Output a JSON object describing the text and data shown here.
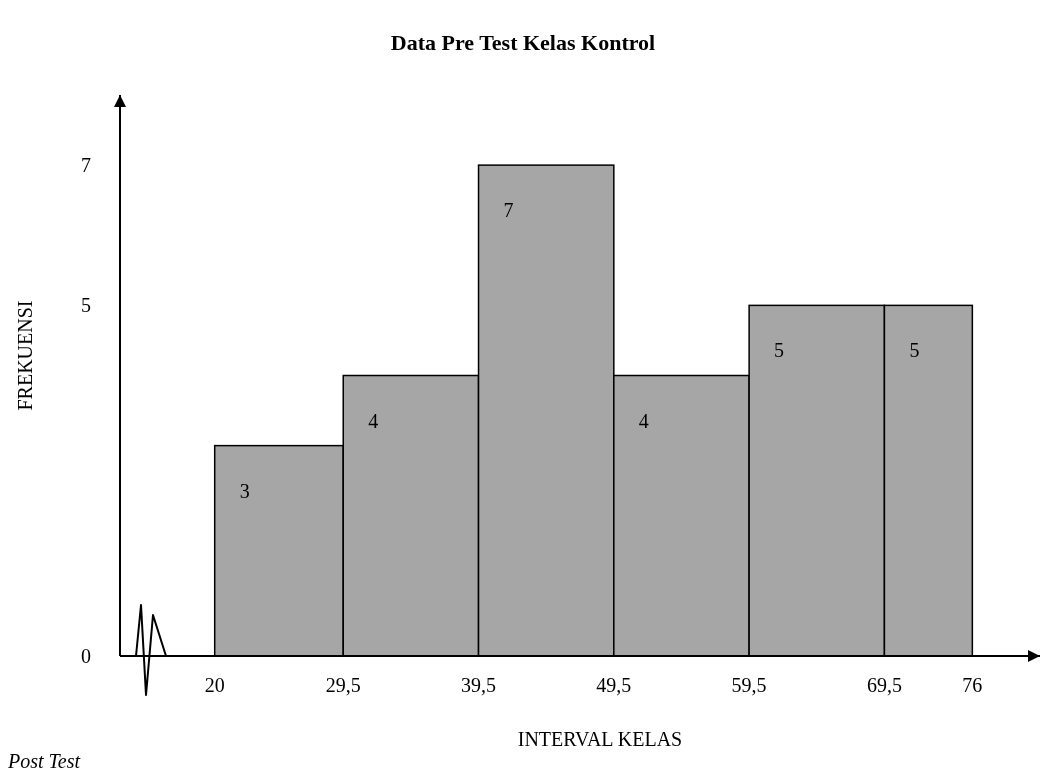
{
  "chart_data": {
    "type": "histogram",
    "title": "Data Pre Test Kelas Kontrol",
    "xlabel": "INTERVAL KELAS",
    "ylabel": "FREKUENSI",
    "bins": [
      20,
      29.5,
      39.5,
      49.5,
      59.5,
      69.5,
      76
    ],
    "values": [
      3,
      4,
      7,
      4,
      5,
      5
    ],
    "color": "#a6a6a6",
    "xlim": [
      13,
      81
    ],
    "xticks": [
      {
        "value": 20,
        "label": "20"
      },
      {
        "value": 29.5,
        "label": "29,5"
      },
      {
        "value": 39.5,
        "label": "39,5"
      },
      {
        "value": 49.5,
        "label": "49,5"
      },
      {
        "value": 59.5,
        "label": "59,5"
      },
      {
        "value": 69.5,
        "label": "69,5"
      },
      {
        "value": 76,
        "label": "76"
      }
    ],
    "ylim": [
      0,
      8
    ],
    "yticks": [
      0,
      5,
      7
    ],
    "data_labels": true,
    "grid": false,
    "annotations": [
      "Post Test"
    ]
  }
}
